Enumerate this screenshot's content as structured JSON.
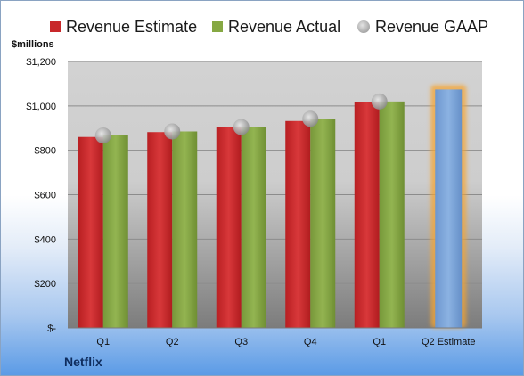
{
  "chart_data": {
    "type": "bar",
    "title": "",
    "ylabel": "$millions",
    "xlabel": "",
    "company": "Netflix",
    "categories": [
      "Q1",
      "Q2",
      "Q3",
      "Q4",
      "Q1",
      "Q2 Estimate"
    ],
    "series": [
      {
        "name": "Revenue Estimate",
        "color": "#c8282a",
        "values": [
          860,
          882,
          903,
          932,
          1017,
          null
        ]
      },
      {
        "name": "Revenue Actual",
        "color": "#86a843",
        "values": [
          867,
          885,
          905,
          942,
          1020,
          null
        ]
      },
      {
        "name": "Revenue GAAP",
        "color": "#a6a6a6",
        "marker": "circle",
        "values": [
          867,
          885,
          905,
          942,
          1020,
          null
        ]
      }
    ],
    "estimate_bar": {
      "category": "Q2 Estimate",
      "value": 1074,
      "color": "#7ea7d8",
      "glow": "#f5a433"
    },
    "ylim": [
      0,
      1200
    ],
    "yticks": [
      0,
      200,
      400,
      600,
      800,
      1000,
      1200
    ],
    "ytick_labels": [
      "$-",
      "$200",
      "$400",
      "$600",
      "$800",
      "$1,000",
      "$1,200"
    ],
    "grid": true,
    "legend_position": "top"
  }
}
